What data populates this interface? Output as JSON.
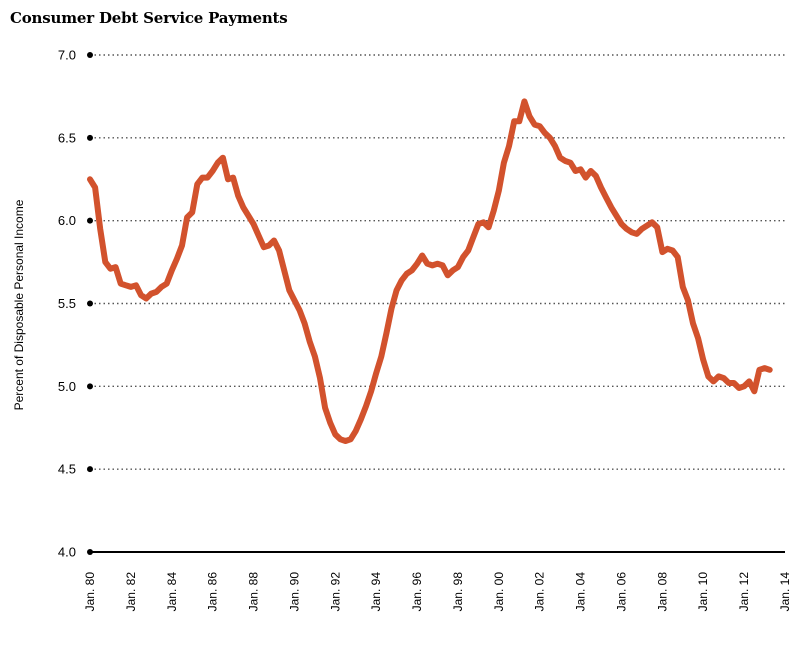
{
  "chart_data": {
    "type": "line",
    "title": "Consumer Debt Service Payments",
    "ylabel": "Percent of Disposable Personal Income",
    "xlabel": "",
    "ylim": [
      4.0,
      7.0
    ],
    "xlim": [
      1980,
      2014
    ],
    "yticks": [
      "4.0",
      "4.5",
      "5.0",
      "5.5",
      "6.0",
      "6.5",
      "7.0"
    ],
    "xticks": [
      "Jan. 80",
      "Jan. 82",
      "Jan. 84",
      "Jan. 86",
      "Jan. 88",
      "Jan. 90",
      "Jan. 92",
      "Jan. 94",
      "Jan. 96",
      "Jan. 98",
      "Jan. 00",
      "Jan. 02",
      "Jan. 04",
      "Jan. 06",
      "Jan. 08",
      "Jan. 10",
      "Jan. 12",
      "Jan. 14"
    ],
    "grid": "horizontal dotted",
    "colors": {
      "series": "#d2522d",
      "grid": "#555555",
      "axis": "#000000"
    },
    "series": [
      {
        "x": [
          1980.0,
          1980.25,
          1980.5,
          1980.75,
          1981.0,
          1981.25,
          1981.5,
          1981.75,
          1982.0,
          1982.25,
          1982.5,
          1982.75,
          1983.0,
          1983.25,
          1983.5,
          1983.75,
          1984.0,
          1984.25,
          1984.5,
          1984.75,
          1985.0,
          1985.25,
          1985.5,
          1985.75,
          1986.0,
          1986.25,
          1986.5,
          1986.75,
          1987.0,
          1987.25,
          1987.5,
          1987.75,
          1988.0,
          1988.25,
          1988.5,
          1988.75,
          1989.0,
          1989.25,
          1989.5,
          1989.75,
          1990.0,
          1990.25,
          1990.5,
          1990.75,
          1991.0,
          1991.25,
          1991.5,
          1991.75,
          1992.0,
          1992.25,
          1992.5,
          1992.75,
          1993.0,
          1993.25,
          1993.5,
          1993.75,
          1994.0,
          1994.25,
          1994.5,
          1994.75,
          1995.0,
          1995.25,
          1995.5,
          1995.75,
          1996.0,
          1996.25,
          1996.5,
          1996.75,
          1997.0,
          1997.25,
          1997.5,
          1997.75,
          1998.0,
          1998.25,
          1998.5,
          1998.75,
          1999.0,
          1999.25,
          1999.5,
          1999.75,
          2000.0,
          2000.25,
          2000.5,
          2000.75,
          2001.0,
          2001.25,
          2001.5,
          2001.75,
          2002.0,
          2002.25,
          2002.5,
          2002.75,
          2003.0,
          2003.25,
          2003.5,
          2003.75,
          2004.0,
          2004.25,
          2004.5,
          2004.75,
          2005.0,
          2005.25,
          2005.5,
          2005.75,
          2006.0,
          2006.25,
          2006.5,
          2006.75,
          2007.0,
          2007.25,
          2007.5,
          2007.75,
          2008.0,
          2008.25,
          2008.5,
          2008.75,
          2009.0,
          2009.25,
          2009.5,
          2009.75,
          2010.0,
          2010.25,
          2010.5,
          2010.75,
          2011.0,
          2011.25,
          2011.5,
          2011.75,
          2012.0,
          2012.25,
          2012.5,
          2012.75,
          2013.0,
          2013.25
        ],
        "values": [
          6.25,
          6.2,
          5.95,
          5.75,
          5.71,
          5.72,
          5.62,
          5.61,
          5.6,
          5.61,
          5.55,
          5.53,
          5.56,
          5.57,
          5.6,
          5.62,
          5.7,
          5.77,
          5.85,
          6.02,
          6.05,
          6.22,
          6.26,
          6.26,
          6.3,
          6.35,
          6.38,
          6.25,
          6.26,
          6.15,
          6.08,
          6.03,
          5.98,
          5.91,
          5.84,
          5.85,
          5.88,
          5.82,
          5.7,
          5.58,
          5.52,
          5.46,
          5.38,
          5.27,
          5.18,
          5.05,
          4.87,
          4.78,
          4.71,
          4.68,
          4.67,
          4.68,
          4.73,
          4.8,
          4.88,
          4.97,
          5.08,
          5.18,
          5.32,
          5.47,
          5.58,
          5.64,
          5.68,
          5.7,
          5.74,
          5.79,
          5.74,
          5.73,
          5.74,
          5.73,
          5.67,
          5.7,
          5.72,
          5.78,
          5.82,
          5.9,
          5.98,
          5.99,
          5.96,
          6.06,
          6.18,
          6.35,
          6.45,
          6.6,
          6.6,
          6.72,
          6.63,
          6.58,
          6.57,
          6.53,
          6.5,
          6.45,
          6.38,
          6.36,
          6.35,
          6.3,
          6.31,
          6.26,
          6.3,
          6.27,
          6.2,
          6.14,
          6.08,
          6.03,
          5.98,
          5.95,
          5.93,
          5.92,
          5.95,
          5.97,
          5.99,
          5.96,
          5.81,
          5.83,
          5.82,
          5.78,
          5.6,
          5.52,
          5.38,
          5.29,
          5.16,
          5.06,
          5.03,
          5.06,
          5.05,
          5.02,
          5.02,
          4.99,
          5.0,
          5.03,
          4.97,
          5.1,
          5.11,
          5.1
        ]
      }
    ]
  }
}
